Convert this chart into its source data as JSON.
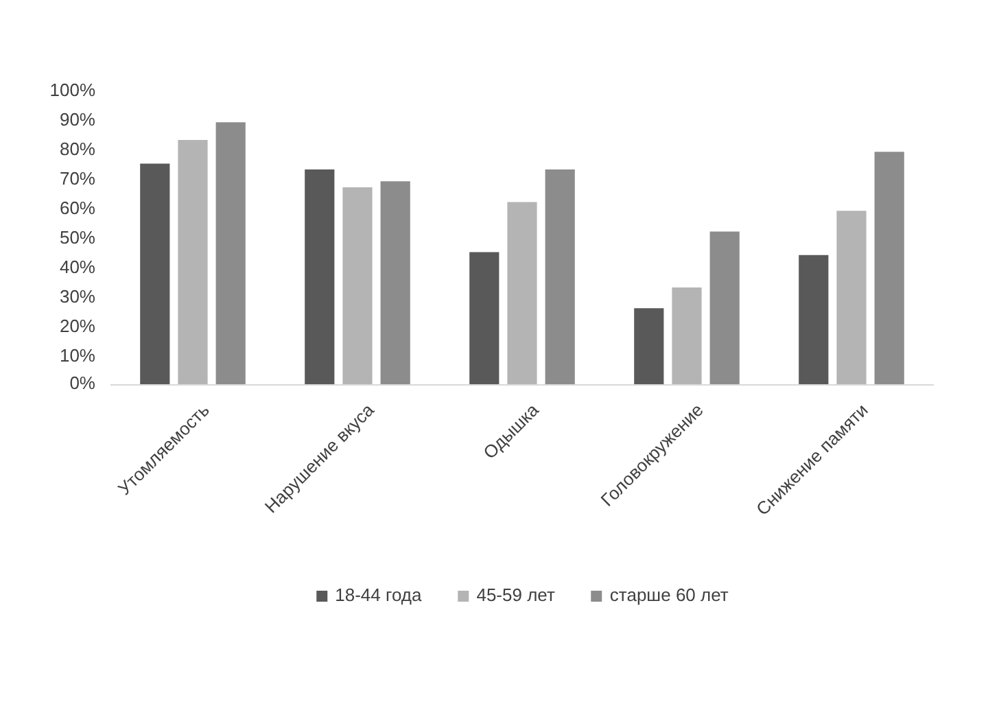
{
  "chart_data": {
    "type": "bar",
    "categories": [
      "Утомляемость",
      "Нарушение вкуса",
      "Одышка",
      "Головокружение",
      "Снижение памяти"
    ],
    "series": [
      {
        "name": "18-44 года",
        "color": "#595959",
        "values": [
          75,
          73,
          45,
          26,
          44
        ]
      },
      {
        "name": "45-59 лет",
        "color": "#b4b4b4",
        "values": [
          83,
          67,
          62,
          33,
          59
        ]
      },
      {
        "name": "старше 60 лет",
        "color": "#8c8c8c",
        "values": [
          89,
          69,
          73,
          52,
          79
        ]
      }
    ],
    "ylim": [
      0,
      100
    ],
    "yticks": [
      {
        "value": 0,
        "label": "0%"
      },
      {
        "value": 10,
        "label": "10%"
      },
      {
        "value": 20,
        "label": "20%"
      },
      {
        "value": 30,
        "label": "30%"
      },
      {
        "value": 40,
        "label": "40%"
      },
      {
        "value": 50,
        "label": "50%"
      },
      {
        "value": 60,
        "label": "60%"
      },
      {
        "value": 70,
        "label": "70%"
      },
      {
        "value": 80,
        "label": "80%"
      },
      {
        "value": 90,
        "label": "90%"
      },
      {
        "value": 100,
        "label": "100%"
      }
    ],
    "grid": false,
    "legend": "bottom"
  }
}
